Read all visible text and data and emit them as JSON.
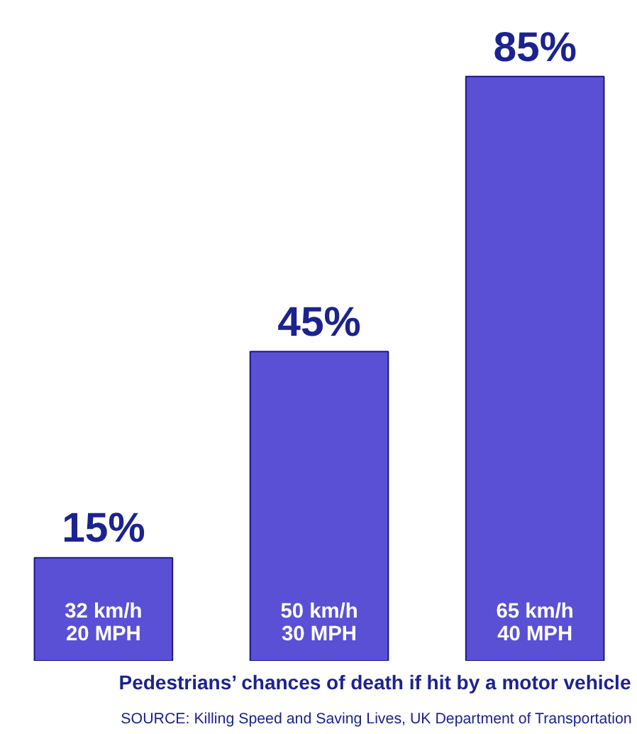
{
  "chart_data": {
    "type": "bar",
    "title": "Pedestrians’ chances of death if hit by a motor vehicle",
    "annotations": [
      "SOURCE: Killing Speed and Saving Lives, UK Department of Transportation"
    ],
    "categories": [
      "32 km/h\n20 MPH",
      "50 km/h\n30 MPH",
      "65 km/h\n40 MPH"
    ],
    "values": [
      15,
      45,
      85
    ],
    "value_labels": [
      "15%",
      "45%",
      "85%"
    ],
    "color": "#5a50d6",
    "grid": false
  }
}
